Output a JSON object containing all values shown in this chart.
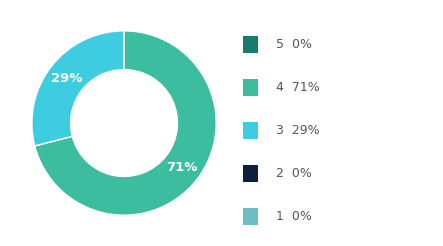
{
  "slices": [
    {
      "label": "5",
      "pct": 0,
      "color": "#1a7a6e"
    },
    {
      "label": "4",
      "pct": 71,
      "color": "#3dbda0"
    },
    {
      "label": "3",
      "pct": 29,
      "color": "#3dcce0"
    },
    {
      "label": "2",
      "pct": 0,
      "color": "#0d1f3c"
    },
    {
      "label": "1",
      "pct": 0,
      "color": "#6bbfc4"
    }
  ],
  "legend_entries": [
    {
      "label": "5",
      "pct_str": "0%",
      "color": "#1a7a6e"
    },
    {
      "label": "4",
      "pct_str": "71%",
      "color": "#3dbda0"
    },
    {
      "label": "3",
      "pct_str": "29%",
      "color": "#3dcce0"
    },
    {
      "label": "2",
      "pct_str": "0%",
      "color": "#0d1f3c"
    },
    {
      "label": "1",
      "pct_str": "0%",
      "color": "#6bbfc4"
    }
  ],
  "label_fontsize": 9.5,
  "legend_fontsize": 9,
  "legend_label_color": "#555555",
  "bg_color": "#ffffff",
  "text_color": "#ffffff",
  "start_angle": 90,
  "donut_width": 0.42
}
